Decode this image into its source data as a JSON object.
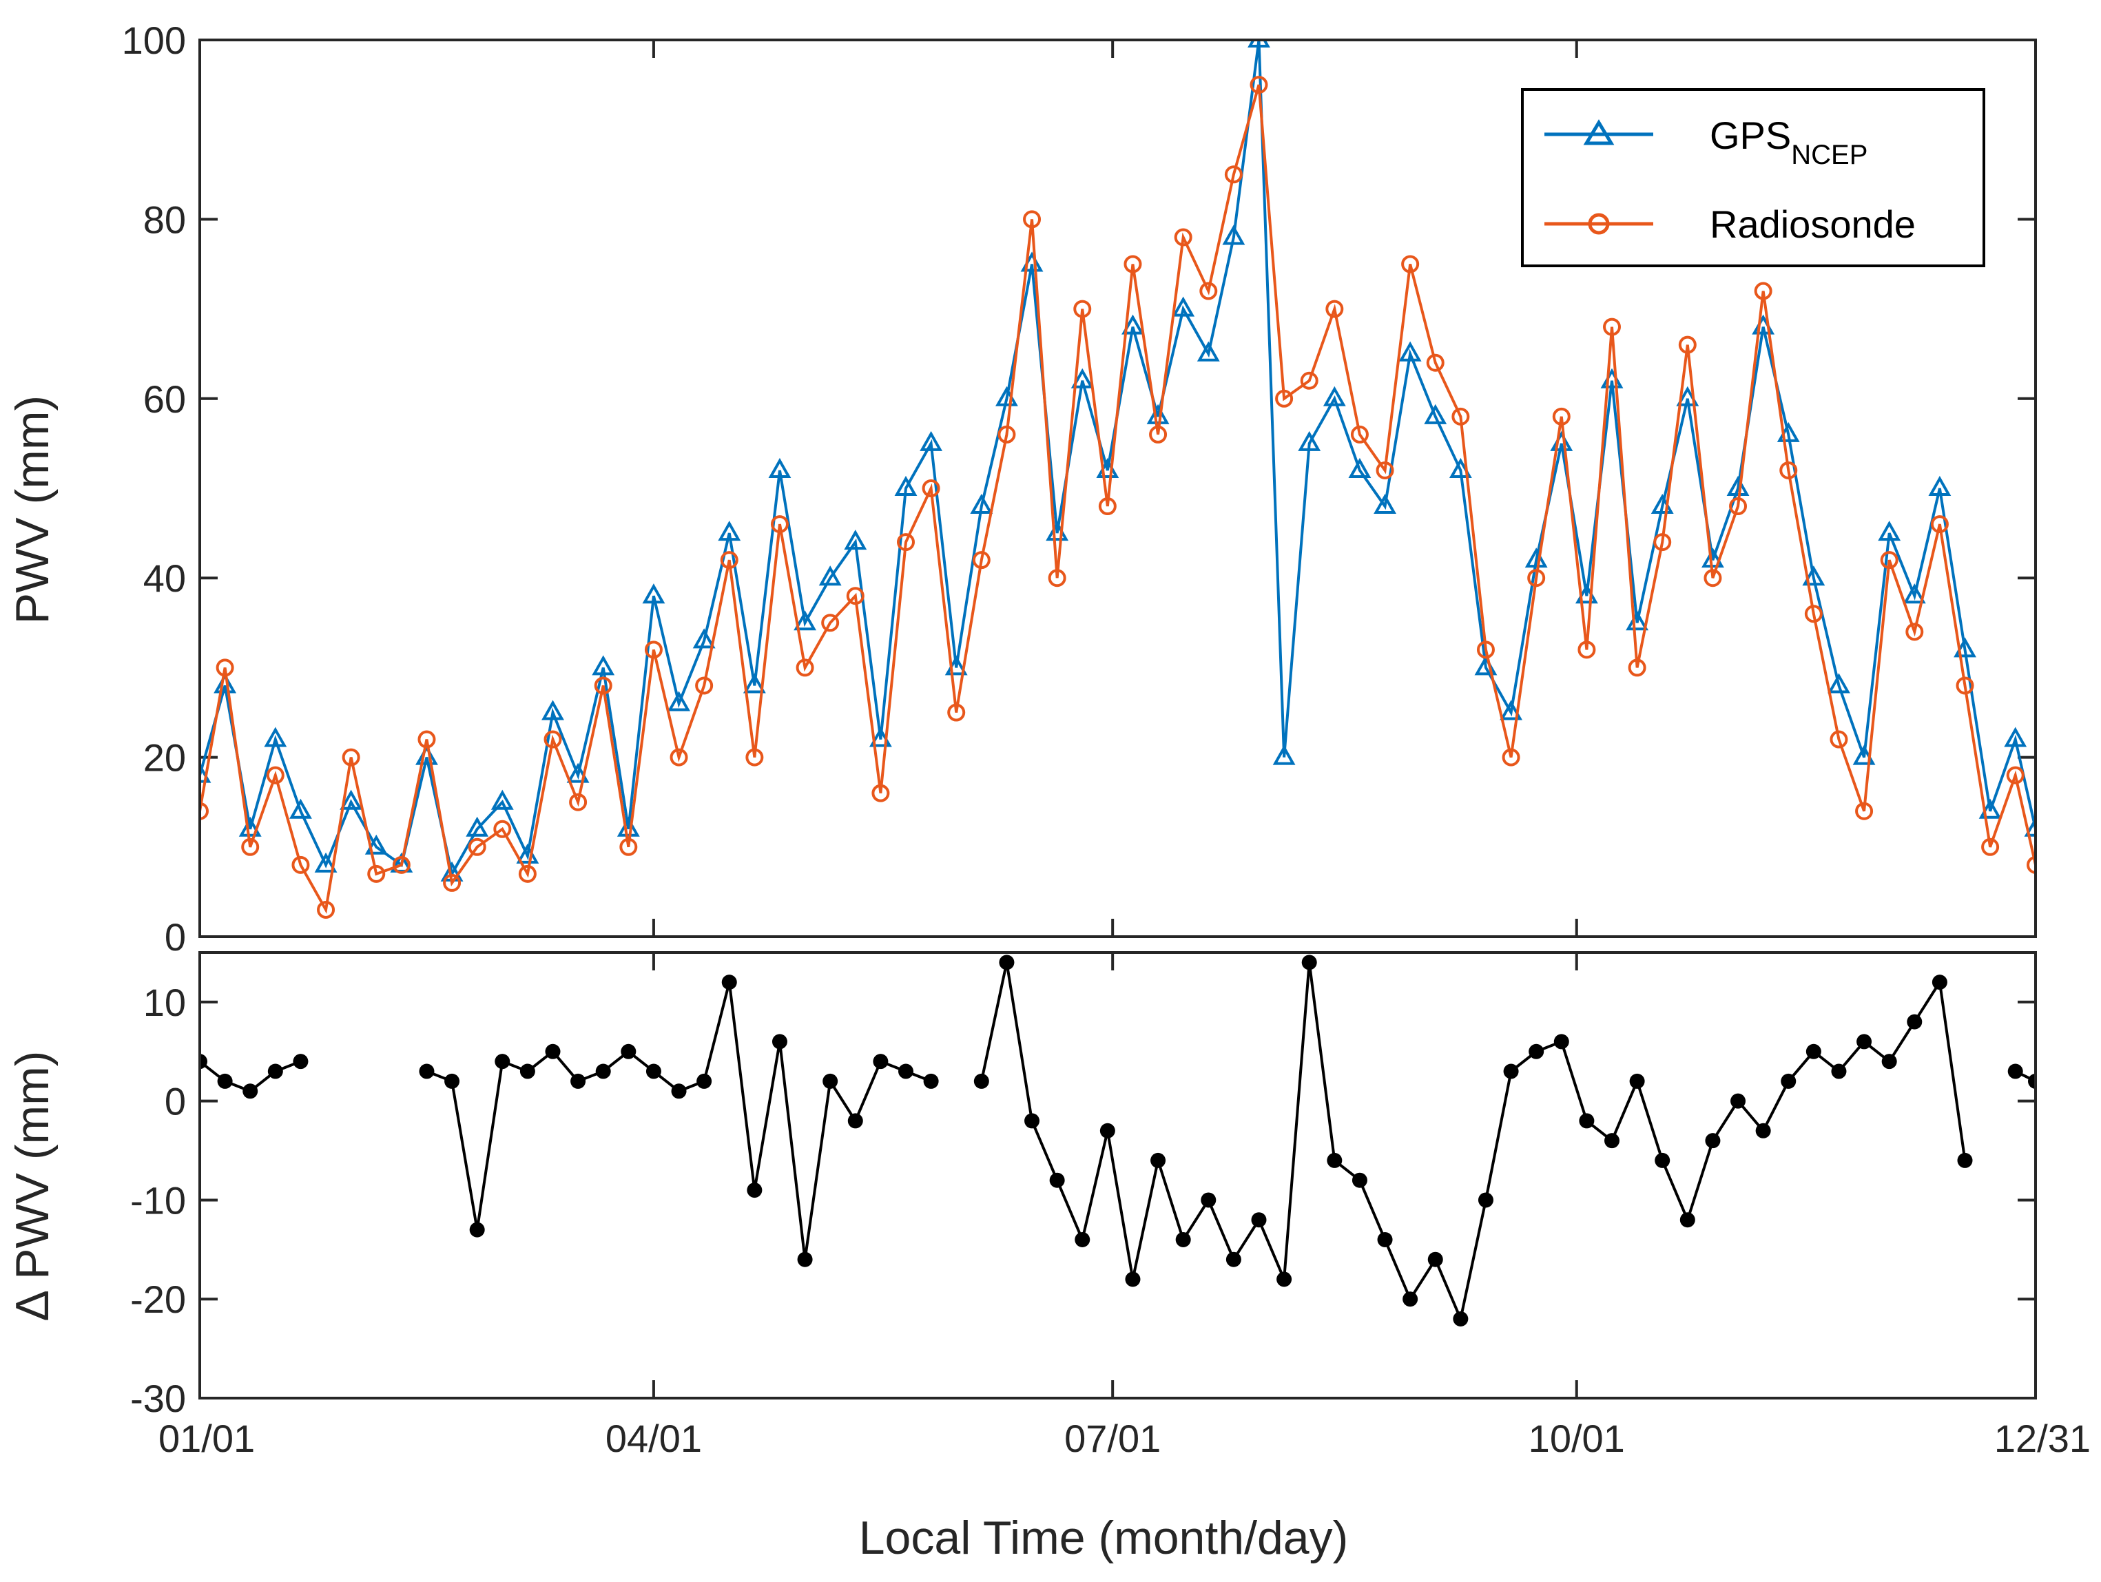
{
  "chart_data": [
    {
      "type": "line",
      "panel": "top",
      "ylabel": "PWV (mm)",
      "ylim": [
        0,
        100
      ],
      "yticks": [
        "0",
        "20",
        "40",
        "60",
        "80",
        "100"
      ],
      "xlim": [
        0,
        364
      ],
      "legend_position": "top-right",
      "series": [
        {
          "name": "GPS",
          "name_subscript": "NCEP",
          "color": "#0072BD",
          "marker": "triangle",
          "x": [
            0,
            5,
            10,
            15,
            20,
            25,
            30,
            35,
            40,
            45,
            50,
            55,
            60,
            65,
            70,
            75,
            80,
            85,
            90,
            95,
            100,
            105,
            110,
            115,
            120,
            125,
            130,
            135,
            140,
            145,
            150,
            155,
            160,
            165,
            170,
            175,
            180,
            185,
            190,
            195,
            200,
            205,
            210,
            215,
            220,
            225,
            230,
            235,
            240,
            245,
            250,
            255,
            260,
            265,
            270,
            275,
            280,
            285,
            290,
            295,
            300,
            305,
            310,
            315,
            320,
            325,
            330,
            335,
            340,
            345,
            350,
            355,
            360,
            364
          ],
          "y": [
            18,
            28,
            12,
            22,
            14,
            8,
            15,
            10,
            8,
            20,
            7,
            12,
            15,
            9,
            25,
            18,
            30,
            12,
            38,
            26,
            33,
            45,
            28,
            52,
            35,
            40,
            44,
            22,
            50,
            55,
            30,
            48,
            60,
            75,
            45,
            62,
            52,
            68,
            58,
            70,
            65,
            78,
            100,
            20,
            55,
            60,
            52,
            48,
            65,
            58,
            52,
            30,
            25,
            42,
            55,
            38,
            62,
            35,
            48,
            60,
            42,
            50,
            68,
            56,
            40,
            28,
            20,
            45,
            38,
            50,
            32,
            14,
            22,
            12
          ]
        },
        {
          "name": "Radiosonde",
          "color": "#E8571B",
          "marker": "circle",
          "x": [
            0,
            5,
            10,
            15,
            20,
            25,
            30,
            35,
            40,
            45,
            50,
            55,
            60,
            65,
            70,
            75,
            80,
            85,
            90,
            95,
            100,
            105,
            110,
            115,
            120,
            125,
            130,
            135,
            140,
            145,
            150,
            155,
            160,
            165,
            170,
            175,
            180,
            185,
            190,
            195,
            200,
            205,
            210,
            215,
            220,
            225,
            230,
            235,
            240,
            245,
            250,
            255,
            260,
            265,
            270,
            275,
            280,
            285,
            290,
            295,
            300,
            305,
            310,
            315,
            320,
            325,
            330,
            335,
            340,
            345,
            350,
            355,
            360,
            364
          ],
          "y": [
            14,
            30,
            10,
            18,
            8,
            3,
            20,
            7,
            8,
            22,
            6,
            10,
            12,
            7,
            22,
            15,
            28,
            10,
            32,
            20,
            28,
            42,
            20,
            46,
            30,
            35,
            38,
            16,
            44,
            50,
            25,
            42,
            56,
            80,
            40,
            70,
            48,
            75,
            56,
            78,
            72,
            85,
            95,
            60,
            62,
            70,
            56,
            52,
            75,
            64,
            58,
            32,
            20,
            40,
            58,
            32,
            68,
            30,
            44,
            66,
            40,
            48,
            72,
            52,
            36,
            22,
            14,
            42,
            34,
            46,
            28,
            10,
            18,
            8
          ]
        }
      ]
    },
    {
      "type": "line",
      "panel": "bottom",
      "ylabel": "Δ PWV (mm)",
      "xlabel": "Local Time (month/day)",
      "ylim": [
        -30,
        15
      ],
      "yticks": [
        "-30",
        "-20",
        "-10",
        "0",
        "10"
      ],
      "xticks": [
        "01/01",
        "04/01",
        "07/01",
        "10/01",
        "12/31"
      ],
      "xtick_days": [
        0,
        90,
        181,
        273,
        364
      ],
      "series": [
        {
          "name": "Δ PWV",
          "color": "#000000",
          "marker": "dot",
          "x": [
            0,
            5,
            10,
            15,
            20,
            25,
            30,
            35,
            40,
            45,
            50,
            55,
            60,
            65,
            70,
            75,
            80,
            85,
            90,
            95,
            100,
            105,
            110,
            115,
            120,
            125,
            130,
            135,
            140,
            145,
            150,
            155,
            160,
            165,
            170,
            175,
            180,
            185,
            190,
            195,
            200,
            205,
            210,
            215,
            220,
            225,
            230,
            235,
            240,
            245,
            250,
            255,
            260,
            265,
            270,
            275,
            280,
            285,
            290,
            295,
            300,
            305,
            310,
            315,
            320,
            325,
            330,
            335,
            340,
            345,
            350,
            355,
            360,
            364
          ],
          "y": [
            4,
            2,
            1,
            3,
            4,
            null,
            null,
            null,
            null,
            3,
            2,
            -13,
            4,
            3,
            5,
            2,
            3,
            5,
            3,
            1,
            2,
            12,
            -9,
            6,
            -16,
            2,
            -2,
            4,
            3,
            2,
            null,
            2,
            14,
            -2,
            -8,
            -14,
            -3,
            -18,
            -6,
            -14,
            -10,
            -16,
            -12,
            -18,
            14,
            -6,
            -8,
            -14,
            -20,
            -16,
            -22,
            -10,
            3,
            5,
            6,
            -2,
            -4,
            2,
            -6,
            -12,
            -4,
            0,
            -3,
            2,
            5,
            3,
            6,
            4,
            8,
            12,
            -6,
            null,
            3,
            2
          ]
        }
      ]
    }
  ]
}
